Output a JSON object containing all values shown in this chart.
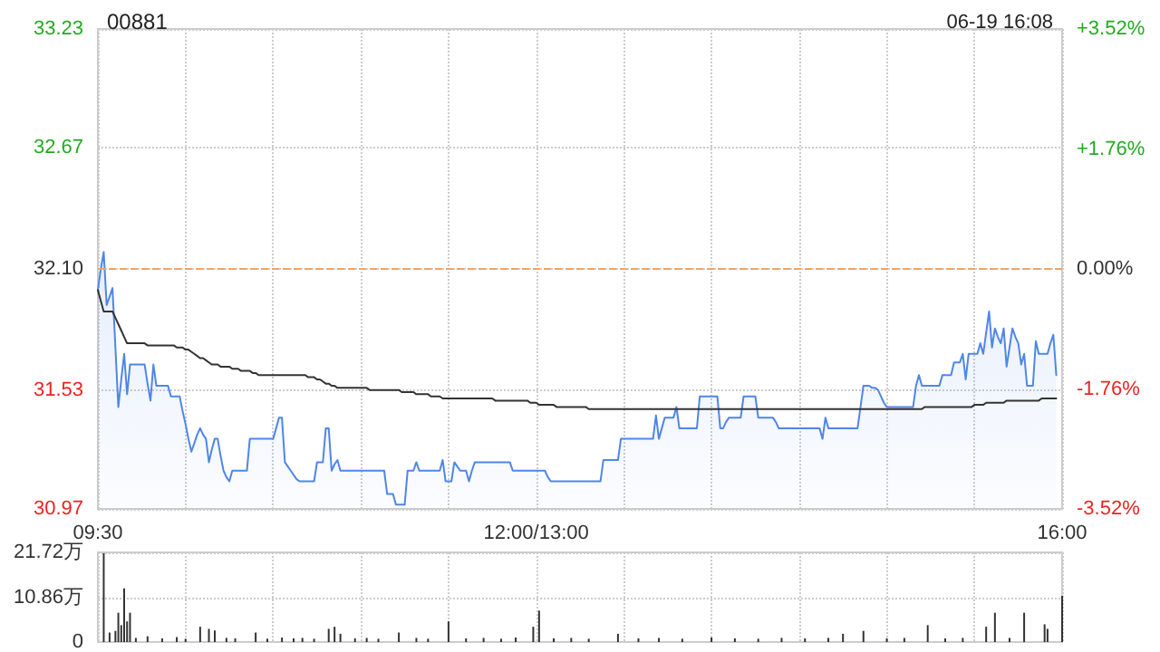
{
  "chart_data": [
    {
      "type": "line",
      "title": "00881",
      "subtitle": "06-19 16:08",
      "categories": [
        "09:30",
        null,
        null,
        null,
        null,
        null,
        null,
        null,
        null,
        null,
        null,
        null,
        null,
        null,
        null,
        null,
        null,
        null,
        null,
        null,
        null,
        null,
        null,
        null,
        null,
        null,
        null,
        null,
        null,
        null,
        null,
        null,
        null,
        null,
        null,
        null,
        null,
        null,
        null,
        null,
        null,
        null,
        null,
        null,
        null,
        null,
        null,
        null,
        null,
        null,
        null,
        null,
        null,
        null,
        null,
        null,
        null,
        null,
        null,
        null,
        null,
        null,
        null,
        null,
        null,
        null,
        null,
        null,
        null,
        null,
        null,
        null,
        null,
        null,
        null,
        null,
        null,
        null,
        null,
        null,
        null,
        null,
        null,
        null,
        null,
        null,
        null,
        null,
        null,
        null,
        null,
        null,
        null,
        null,
        null,
        null,
        null,
        null,
        null,
        null,
        null,
        null,
        null,
        null,
        null,
        null,
        null,
        null,
        null,
        null,
        null,
        null,
        null,
        null,
        null,
        null,
        null,
        null,
        null,
        null,
        null,
        null,
        null,
        null,
        null,
        null,
        null,
        null,
        null,
        null,
        null,
        null,
        null,
        null,
        null,
        null,
        null,
        null,
        null,
        null,
        null,
        null,
        null,
        null,
        null,
        null,
        null,
        null,
        null,
        null,
        "12:00/13:00",
        null,
        null,
        null,
        null,
        null,
        null,
        null,
        null,
        null,
        null,
        null,
        null,
        null,
        null,
        null,
        null,
        null,
        null,
        null,
        null,
        null,
        null,
        null,
        null,
        null,
        null,
        null,
        null,
        null,
        null,
        null,
        null,
        null,
        null,
        null,
        null,
        null,
        null,
        null,
        null,
        null,
        null,
        null,
        null,
        null,
        null,
        null,
        null,
        null,
        null,
        null,
        null,
        null,
        null,
        null,
        null,
        null,
        null,
        null,
        null,
        null,
        null,
        null,
        null,
        null,
        null,
        null,
        null,
        null,
        null,
        null,
        null,
        null,
        null,
        null,
        null,
        null,
        null,
        null,
        null,
        null,
        null,
        null,
        null,
        null,
        null,
        null,
        null,
        null,
        null,
        null,
        null,
        null,
        null,
        null,
        null,
        null,
        null,
        null,
        null,
        null,
        null,
        null,
        null,
        null,
        null,
        null,
        null,
        null,
        null,
        null,
        null,
        null,
        null,
        null,
        null,
        null,
        null,
        null,
        null,
        null,
        null,
        null,
        null,
        null,
        null,
        null,
        null,
        null,
        null,
        null,
        null,
        null,
        null,
        null,
        null,
        null,
        null,
        null,
        null,
        null,
        null,
        null,
        null,
        null,
        null,
        null,
        null,
        null,
        null,
        null,
        null,
        null,
        null,
        null,
        null,
        null,
        null,
        null,
        null,
        null,
        null,
        null,
        null,
        null,
        null,
        null,
        null,
        null,
        null,
        null,
        null,
        null,
        null,
        null,
        null,
        null,
        null,
        null,
        "16:00"
      ],
      "ylim": [
        30.97,
        33.23
      ],
      "yticks": [
        30.97,
        31.53,
        {
          "value": 32.1,
          "label": "32.10"
        },
        32.67,
        33.23
      ],
      "y2lim": [
        -3.52,
        3.52
      ],
      "y2ticks": [
        {
          "value": -3.52,
          "label": "-3.52%"
        },
        {
          "value": -1.76,
          "label": "-1.76%"
        },
        {
          "value": 0,
          "label": "0.00%"
        },
        {
          "value": 1.76,
          "label": "+1.76%"
        },
        {
          "value": 3.52,
          "label": "+3.52%"
        }
      ],
      "grid": true,
      "marker": "none",
      "line_style": "solid",
      "ref_lines": [
        {
          "axis": "y",
          "value": 32.1,
          "label": null,
          "color": "#f4a460",
          "line_style": "dashed"
        }
      ],
      "series": [
        {
          "type": "area",
          "color": "#4f86e8",
          "values": [
            32.0,
            32.1,
            32.18,
            31.93,
            31.97,
            32.01,
            31.73,
            31.45,
            31.58,
            31.7,
            31.51,
            31.65,
            31.65,
            31.65,
            31.65,
            31.65,
            31.65,
            31.56,
            31.48,
            31.65,
            31.55,
            31.55,
            31.55,
            31.55,
            31.55,
            31.5,
            31.5,
            31.5,
            31.5,
            31.43,
            31.37,
            31.3,
            31.24,
            31.28,
            31.32,
            31.35,
            31.32,
            31.3,
            31.19,
            31.25,
            31.3,
            31.3,
            31.22,
            31.15,
            31.12,
            31.1,
            31.15,
            31.15,
            31.15,
            31.15,
            31.15,
            31.15,
            31.3,
            31.3,
            31.3,
            31.3,
            31.3,
            31.3,
            31.3,
            31.3,
            31.3,
            31.35,
            31.4,
            31.4,
            31.19,
            31.17,
            31.15,
            31.13,
            31.11,
            31.1,
            31.1,
            31.1,
            31.1,
            31.1,
            31.1,
            31.19,
            31.19,
            31.19,
            31.35,
            31.35,
            31.15,
            31.18,
            31.2,
            31.15,
            31.15,
            31.15,
            31.15,
            31.15,
            31.15,
            31.15,
            31.15,
            31.15,
            31.15,
            31.15,
            31.15,
            31.15,
            31.15,
            31.15,
            31.15,
            31.04,
            31.04,
            31.04,
            30.99,
            30.99,
            30.99,
            30.99,
            31.15,
            31.15,
            31.15,
            31.19,
            31.15,
            31.15,
            31.15,
            31.15,
            31.15,
            31.15,
            31.15,
            31.15,
            31.2,
            31.1,
            31.1,
            31.1,
            31.19,
            31.17,
            31.15,
            31.15,
            31.15,
            31.1,
            31.15,
            31.19,
            31.19,
            31.19,
            31.19,
            31.19,
            31.19,
            31.19,
            31.19,
            31.19,
            31.19,
            31.19,
            31.19,
            31.19,
            31.15,
            31.15,
            31.15,
            31.15,
            31.15,
            31.15,
            31.15,
            31.15,
            31.15,
            31.15,
            31.15,
            31.15,
            31.12,
            31.1,
            31.1,
            31.1,
            31.1,
            31.1,
            31.1,
            31.1,
            31.1,
            31.1,
            31.1,
            31.1,
            31.1,
            31.1,
            31.1,
            31.1,
            31.1,
            31.1,
            31.1,
            31.2,
            31.2,
            31.2,
            31.2,
            31.2,
            31.2,
            31.3,
            31.3,
            31.3,
            31.3,
            31.3,
            31.3,
            31.3,
            31.3,
            31.3,
            31.3,
            31.3,
            31.3,
            31.41,
            31.3,
            31.35,
            31.4,
            31.4,
            31.4,
            31.4,
            31.45,
            31.35,
            31.35,
            31.35,
            31.35,
            31.35,
            31.35,
            31.35,
            31.5,
            31.5,
            31.5,
            31.5,
            31.5,
            31.5,
            31.5,
            31.35,
            31.35,
            31.38,
            31.4,
            31.4,
            31.4,
            31.4,
            31.4,
            31.5,
            31.5,
            31.5,
            31.5,
            31.5,
            31.4,
            31.4,
            31.4,
            31.4,
            31.4,
            31.4,
            31.38,
            31.35,
            31.35,
            31.35,
            31.35,
            31.35,
            31.35,
            31.35,
            31.35,
            31.35,
            31.35,
            31.35,
            31.35,
            31.35,
            31.35,
            31.35,
            31.3,
            31.4,
            31.35,
            31.35,
            31.35,
            31.35,
            31.35,
            31.35,
            31.35,
            31.35,
            31.35,
            31.35,
            31.35,
            31.45,
            31.55,
            31.55,
            31.55,
            31.54,
            31.54,
            31.53,
            31.5,
            31.47,
            31.45,
            31.45,
            31.45,
            31.45,
            31.45,
            31.45,
            31.45,
            31.45,
            31.45,
            31.45,
            31.55,
            31.6,
            31.55,
            31.55,
            31.55,
            31.55,
            31.55,
            31.55,
            31.55,
            31.6,
            31.6,
            31.6,
            31.6,
            31.66,
            31.66,
            31.66,
            31.7,
            31.58,
            31.7,
            31.7,
            31.7,
            31.7,
            31.75,
            31.7,
            31.8,
            31.9,
            31.73,
            31.82,
            31.78,
            31.75,
            31.82,
            31.64,
            31.73,
            31.82,
            31.78,
            31.75,
            31.65,
            31.7,
            31.55,
            31.55,
            31.55,
            31.76,
            31.7,
            31.7,
            31.7,
            31.7,
            31.75,
            31.79,
            31.6,
            null,
            null
          ]
        },
        {
          "type": "line",
          "color": "#333333",
          "values": [
            32.0,
            31.95,
            31.9,
            31.9,
            31.9,
            31.9,
            31.87,
            31.84,
            31.81,
            31.78,
            31.75,
            31.75,
            31.75,
            31.75,
            31.75,
            31.75,
            31.75,
            31.74,
            31.74,
            31.74,
            31.74,
            31.74,
            31.74,
            31.74,
            31.74,
            31.74,
            31.74,
            31.73,
            31.73,
            31.73,
            31.72,
            31.72,
            31.71,
            31.7,
            31.69,
            31.68,
            31.68,
            31.67,
            31.66,
            31.65,
            31.65,
            31.65,
            31.64,
            31.64,
            31.64,
            31.64,
            31.63,
            31.63,
            31.63,
            31.62,
            31.62,
            31.62,
            31.62,
            31.61,
            31.61,
            31.6,
            31.6,
            31.6,
            31.6,
            31.6,
            31.6,
            31.6,
            31.6,
            31.6,
            31.6,
            31.6,
            31.6,
            31.6,
            31.6,
            31.6,
            31.6,
            31.6,
            31.59,
            31.59,
            31.59,
            31.58,
            31.58,
            31.57,
            31.56,
            31.56,
            31.55,
            31.55,
            31.54,
            31.54,
            31.54,
            31.54,
            31.54,
            31.54,
            31.54,
            31.54,
            31.54,
            31.54,
            31.54,
            31.53,
            31.53,
            31.53,
            31.53,
            31.53,
            31.53,
            31.53,
            31.53,
            31.53,
            31.53,
            31.53,
            31.52,
            31.52,
            31.52,
            31.52,
            31.52,
            31.51,
            31.51,
            31.51,
            31.51,
            31.51,
            31.5,
            31.5,
            31.5,
            31.5,
            31.49,
            31.49,
            31.49,
            31.49,
            31.49,
            31.49,
            31.49,
            31.49,
            31.49,
            31.49,
            31.49,
            31.49,
            31.49,
            31.49,
            31.49,
            31.49,
            31.49,
            31.49,
            31.48,
            31.48,
            31.48,
            31.48,
            31.48,
            31.48,
            31.48,
            31.48,
            31.48,
            31.48,
            31.48,
            31.48,
            31.47,
            31.47,
            31.47,
            31.46,
            31.46,
            31.46,
            31.46,
            31.46,
            31.46,
            31.45,
            31.45,
            31.45,
            31.45,
            31.45,
            31.45,
            31.45,
            31.45,
            31.45,
            31.45,
            31.45,
            31.44,
            31.44,
            31.44,
            31.44,
            31.44,
            31.44,
            31.44,
            31.44,
            31.44,
            31.44,
            31.44,
            31.44,
            31.44,
            31.44,
            31.44,
            31.44,
            31.44,
            31.44,
            31.44,
            31.44,
            31.44,
            31.44,
            31.44,
            31.44,
            31.44,
            31.44,
            31.44,
            31.44,
            31.44,
            31.44,
            31.44,
            31.44,
            31.44,
            31.44,
            31.44,
            31.44,
            31.44,
            31.44,
            31.44,
            31.44,
            31.44,
            31.44,
            31.44,
            31.44,
            31.44,
            31.44,
            31.44,
            31.44,
            31.44,
            31.44,
            31.44,
            31.44,
            31.44,
            31.44,
            31.44,
            31.44,
            31.44,
            31.44,
            31.44,
            31.44,
            31.44,
            31.44,
            31.44,
            31.44,
            31.44,
            31.44,
            31.44,
            31.44,
            31.44,
            31.44,
            31.44,
            31.44,
            31.44,
            31.44,
            31.44,
            31.44,
            31.44,
            31.44,
            31.44,
            31.44,
            31.44,
            31.44,
            31.44,
            31.44,
            31.44,
            31.44,
            31.44,
            31.44,
            31.44,
            31.44,
            31.44,
            31.44,
            31.44,
            31.44,
            31.44,
            31.44,
            31.44,
            31.44,
            31.44,
            31.44,
            31.44,
            31.44,
            31.44,
            31.44,
            31.44,
            31.44,
            31.44,
            31.44,
            31.44,
            31.44,
            31.44,
            31.44,
            31.44,
            31.44,
            31.44,
            31.45,
            31.45,
            31.45,
            31.45,
            31.45,
            31.45,
            31.45,
            31.45,
            31.45,
            31.45,
            31.45,
            31.45,
            31.45,
            31.45,
            31.45,
            31.45,
            31.45,
            31.46,
            31.46,
            31.46,
            31.46,
            31.47,
            31.47,
            31.47,
            31.47,
            31.47,
            31.47,
            31.47,
            31.48,
            31.48,
            31.48,
            31.48,
            31.48,
            31.48,
            31.48,
            31.48,
            31.48,
            31.48,
            31.48,
            31.48,
            31.49,
            31.49,
            31.49,
            31.49,
            31.49,
            31.49,
            null,
            null
          ]
        }
      ]
    },
    {
      "type": "bar",
      "tick_labels": "y",
      "grid": true,
      "color": "#333333",
      "categories": [
        null,
        null,
        null,
        null,
        null,
        null,
        null,
        null,
        null,
        null,
        null,
        null,
        null,
        null,
        null,
        null,
        null,
        null,
        null,
        null,
        null,
        null,
        null,
        null,
        null,
        null,
        null,
        null,
        null,
        null,
        null,
        null,
        null,
        null,
        null,
        null,
        null,
        null,
        null,
        null,
        null,
        null,
        null,
        null,
        null,
        null,
        null,
        null,
        null,
        null,
        null,
        null,
        null,
        null,
        null,
        null,
        null,
        null,
        null,
        null,
        null,
        null,
        null,
        null,
        null,
        null,
        null,
        null,
        null,
        null,
        null,
        null,
        null,
        null,
        null,
        null,
        null,
        null,
        null,
        null,
        null,
        null,
        null,
        null,
        null,
        null,
        null,
        null,
        null,
        null,
        null,
        null,
        null,
        null,
        null,
        null,
        null,
        null,
        null,
        null,
        null,
        null,
        null,
        null,
        null,
        null,
        null,
        null,
        null,
        null,
        null,
        null,
        null,
        null,
        null,
        null,
        null,
        null,
        null,
        null,
        null,
        null,
        null,
        null,
        null,
        null,
        null,
        null,
        null,
        null,
        null,
        null,
        null,
        null,
        null,
        null,
        null,
        null,
        null,
        null,
        null,
        null,
        null,
        null,
        null,
        null,
        null,
        null,
        null,
        null,
        null,
        null,
        null,
        null,
        null,
        null,
        null,
        null,
        null,
        null,
        null,
        null,
        null,
        null,
        null,
        null,
        null,
        null,
        null,
        null,
        null,
        null,
        null,
        null,
        null,
        null,
        null,
        null,
        null,
        null,
        null,
        null,
        null,
        null,
        null,
        null,
        null,
        null,
        null,
        null,
        null,
        null,
        null,
        null,
        null,
        null,
        null,
        null,
        null,
        null,
        null,
        null,
        null,
        null,
        null,
        null,
        null,
        null,
        null,
        null,
        null,
        null,
        null,
        null,
        null,
        null,
        null,
        null,
        null,
        null,
        null,
        null,
        null,
        null,
        null,
        null,
        null,
        null,
        null,
        null,
        null,
        null,
        null,
        null,
        null,
        null,
        null,
        null,
        null,
        null,
        null,
        null,
        null,
        null,
        null,
        null,
        null,
        null,
        null,
        null,
        null,
        null,
        null,
        null,
        null,
        null,
        null,
        null,
        null,
        null,
        null,
        null,
        null,
        null,
        null,
        null,
        null,
        null,
        null,
        null,
        null,
        null,
        null,
        null,
        null,
        null,
        null,
        null,
        null,
        null,
        null,
        null,
        null,
        null,
        null,
        null,
        null,
        null,
        null,
        null,
        null,
        null,
        null,
        null,
        null,
        null,
        null,
        null,
        null,
        null,
        null,
        null,
        null,
        null,
        null,
        null,
        null,
        null,
        null,
        null,
        null,
        null,
        null,
        null,
        null,
        null,
        null,
        null,
        null,
        null,
        null,
        null,
        null,
        null,
        null,
        null,
        null,
        null,
        null,
        null,
        null
      ],
      "ylim": [
        0,
        21.72
      ],
      "yticks": [
        {
          "value": 0,
          "label": "0"
        },
        {
          "value": 10.86,
          "label": "10.86万"
        },
        {
          "value": 21.72,
          "label": "21.72万"
        }
      ],
      "values": [
        null,
        null,
        21.5,
        null,
        2.3,
        null,
        2.7,
        7.1,
        4.1,
        13.0,
        5.0,
        7.1,
        null,
        1.0,
        null,
        null,
        null,
        1.4,
        null,
        null,
        null,
        null,
        0.9,
        null,
        null,
        null,
        null,
        1.2,
        null,
        null,
        0.8,
        null,
        null,
        null,
        null,
        3.7,
        null,
        null,
        3.2,
        null,
        2.8,
        null,
        null,
        null,
        1.0,
        null,
        null,
        0.9,
        null,
        null,
        null,
        null,
        null,
        null,
        2.3,
        null,
        null,
        null,
        0.8,
        null,
        null,
        null,
        null,
        1.1,
        null,
        null,
        null,
        0.9,
        null,
        null,
        1.0,
        null,
        null,
        null,
        0.8,
        null,
        null,
        null,
        null,
        3.2,
        null,
        3.7,
        null,
        2.0,
        null,
        null,
        null,
        null,
        0.9,
        null,
        null,
        null,
        1.0,
        null,
        null,
        null,
        0.8,
        null,
        null,
        null,
        null,
        null,
        null,
        2.3,
        null,
        null,
        null,
        null,
        null,
        1.0,
        null,
        null,
        null,
        0.8,
        null,
        null,
        null,
        null,
        null,
        null,
        5.0,
        null,
        null,
        null,
        null,
        null,
        0.9,
        null,
        null,
        null,
        null,
        null,
        1.0,
        null,
        null,
        null,
        null,
        null,
        0.8,
        null,
        null,
        null,
        null,
        1.1,
        null,
        null,
        null,
        null,
        null,
        3.7,
        null,
        7.6,
        null,
        null,
        null,
        null,
        0.9,
        null,
        null,
        null,
        null,
        null,
        1.0,
        null,
        null,
        null,
        null,
        null,
        0.8,
        null,
        null,
        null,
        null,
        null,
        null,
        null,
        null,
        null,
        2.0,
        null,
        null,
        null,
        null,
        null,
        null,
        0.9,
        null,
        null,
        null,
        null,
        null,
        null,
        1.0,
        null,
        null,
        null,
        null,
        null,
        null,
        null,
        0.8,
        null,
        null,
        null,
        null,
        null,
        null,
        null,
        null,
        null,
        1.1,
        null,
        null,
        null,
        null,
        null,
        null,
        null,
        0.9,
        null,
        null,
        null,
        null,
        null,
        null,
        null,
        0.8,
        null,
        null,
        null,
        null,
        null,
        null,
        null,
        1.0,
        null,
        null,
        null,
        null,
        null,
        null,
        null,
        0.9,
        null,
        null,
        null,
        null,
        null,
        null,
        null,
        1.0,
        null,
        null,
        null,
        null,
        2.0,
        null,
        null,
        null,
        null,
        null,
        null,
        2.7,
        null,
        null,
        null,
        null,
        null,
        null,
        null,
        0.9,
        null,
        null,
        null,
        null,
        null,
        1.0,
        null,
        null,
        null,
        null,
        null,
        null,
        null,
        4.1,
        null,
        null,
        null,
        null,
        null,
        0.9,
        null,
        null,
        null,
        null,
        null,
        1.0,
        null,
        null,
        null,
        null,
        null,
        null,
        null,
        3.7,
        null,
        null,
        7.1,
        null,
        null,
        null,
        null,
        1.0,
        null,
        null,
        null,
        null,
        7.1,
        null,
        null,
        null,
        null,
        null,
        null,
        4.3,
        3.2,
        null,
        null,
        null,
        null,
        11.2
      ]
    }
  ]
}
